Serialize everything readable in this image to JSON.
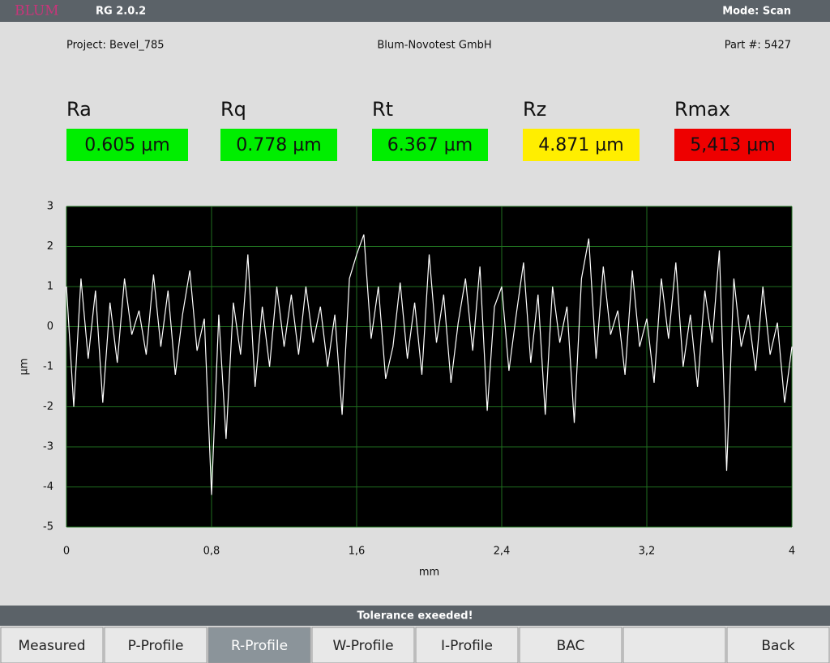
{
  "header": {
    "logo": "BLUM",
    "version": "RG 2.0.2",
    "mode": "Mode: Scan"
  },
  "info": {
    "project": "Project: Bevel_785",
    "company": "Blum-Novotest GmbH",
    "part": "Part #: 5427"
  },
  "metrics": [
    {
      "label": "Ra",
      "value": "0.605 µm",
      "color": "#00ee00"
    },
    {
      "label": "Rq",
      "value": "0.778 µm",
      "color": "#00ee00"
    },
    {
      "label": "Rt",
      "value": "6.367 µm",
      "color": "#00ee00"
    },
    {
      "label": "Rz",
      "value": "4.871 µm",
      "color": "#ffee00"
    },
    {
      "label": "Rmax",
      "value": "5,413 µm",
      "color": "#ee0000"
    }
  ],
  "chart_data": {
    "type": "line",
    "xlabel": "mm",
    "ylabel": "µm",
    "color": "#ffffff",
    "grid": true,
    "grid_color": "#1f6e1f",
    "xlim": [
      0,
      4
    ],
    "ylim": [
      -5,
      3
    ],
    "xticks": [
      0,
      {
        "value": 0.8,
        "label": "0,8"
      },
      {
        "value": 1.6,
        "label": "1,6"
      },
      {
        "value": 2.4,
        "label": "2,4"
      },
      {
        "value": 3.2,
        "label": "3,2"
      },
      4
    ],
    "yticks": [
      3,
      2,
      1,
      0,
      -1,
      -2,
      -3,
      -4,
      -5
    ],
    "x": [
      0,
      0.04,
      0.08,
      0.12,
      0.16,
      0.2,
      0.24,
      0.28,
      0.32,
      0.36,
      0.4,
      0.44,
      0.48,
      0.52,
      0.56,
      0.6,
      0.64,
      0.68,
      0.72,
      0.76,
      0.8,
      0.84,
      0.88,
      0.92,
      0.96,
      1,
      1.04,
      1.08,
      1.12,
      1.16,
      1.2,
      1.24,
      1.28,
      1.32,
      1.36,
      1.4,
      1.44,
      1.48,
      1.52,
      1.56,
      1.6,
      1.64,
      1.68,
      1.72,
      1.76,
      1.8,
      1.84,
      1.88,
      1.92,
      1.96,
      2,
      2.04,
      2.08,
      2.12,
      2.16,
      2.2,
      2.24,
      2.28,
      2.32,
      2.36,
      2.4,
      2.44,
      2.48,
      2.52,
      2.56,
      2.6,
      2.64,
      2.68,
      2.72,
      2.76,
      2.8,
      2.84,
      2.88,
      2.92,
      2.96,
      3,
      3.04,
      3.08,
      3.12,
      3.16,
      3.2,
      3.24,
      3.28,
      3.32,
      3.36,
      3.4,
      3.44,
      3.48,
      3.52,
      3.56,
      3.6,
      3.64,
      3.68,
      3.72,
      3.76,
      3.8,
      3.84,
      3.88,
      3.92,
      3.96,
      4
    ],
    "values": [
      1.0,
      -2.0,
      1.2,
      -0.8,
      0.9,
      -1.9,
      0.6,
      -0.9,
      1.2,
      -0.2,
      0.4,
      -0.7,
      1.3,
      -0.5,
      0.9,
      -1.2,
      0.3,
      1.4,
      -0.6,
      0.2,
      -4.2,
      0.3,
      -2.8,
      0.6,
      -0.7,
      1.8,
      -1.5,
      0.5,
      -1.0,
      1.0,
      -0.5,
      0.8,
      -0.7,
      1.0,
      -0.4,
      0.5,
      -1.0,
      0.3,
      -2.2,
      1.2,
      1.8,
      2.3,
      -0.3,
      1.0,
      -1.3,
      -0.5,
      1.1,
      -0.8,
      0.6,
      -1.2,
      1.8,
      -0.4,
      0.8,
      -1.4,
      0.1,
      1.2,
      -0.6,
      1.5,
      -2.1,
      0.5,
      1.0,
      -1.1,
      0.3,
      1.6,
      -0.9,
      0.8,
      -2.2,
      1.0,
      -0.4,
      0.5,
      -2.4,
      1.2,
      2.2,
      -0.8,
      1.5,
      -0.2,
      0.4,
      -1.2,
      1.4,
      -0.5,
      0.2,
      -1.4,
      1.2,
      -0.3,
      1.6,
      -1.0,
      0.3,
      -1.5,
      0.9,
      -0.4,
      1.9,
      -3.6,
      1.2,
      -0.5,
      0.3,
      -1.1,
      1.0,
      -0.7,
      0.1,
      -1.9,
      -0.5
    ]
  },
  "status": "Tolerance exeeded!",
  "buttons": [
    {
      "label": "Measured"
    },
    {
      "label": "P-Profile"
    },
    {
      "label": "R-Profile",
      "selected": true
    },
    {
      "label": "W-Profile"
    },
    {
      "label": "I-Profile"
    },
    {
      "label": "BAC"
    },
    {
      "label": "Back"
    }
  ]
}
